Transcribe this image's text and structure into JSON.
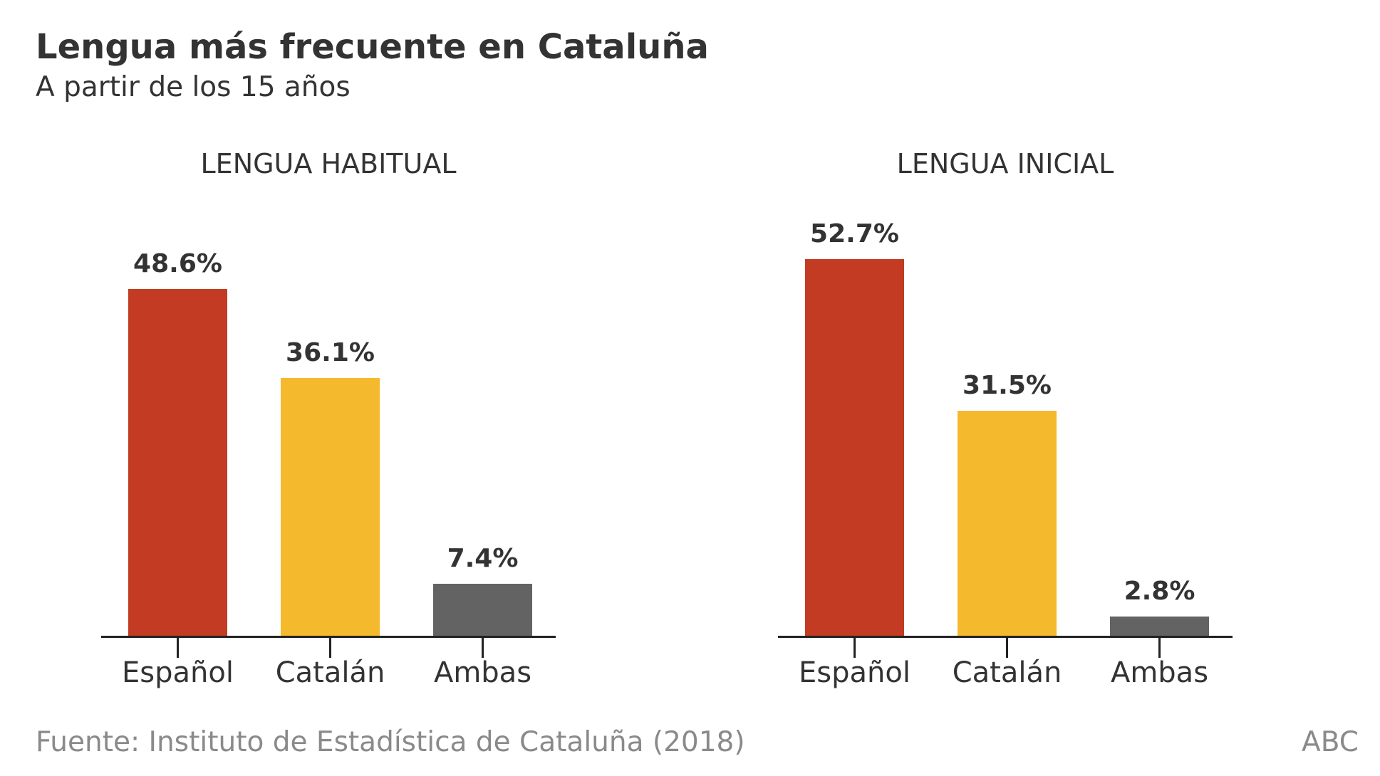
{
  "title": "Lengua más frecuente en Cataluña",
  "subtitle": "A partir de los 15 años",
  "source": "Fuente: Instituto de Estadística de Cataluña (2018)",
  "brand": "ABC",
  "colors": {
    "Español": "#c23b22",
    "Catalán": "#f5b92d",
    "Ambas": "#636363"
  },
  "chart_data": [
    {
      "type": "bar",
      "title": "LENGUA HABITUAL",
      "categories": [
        "Español",
        "Catalán",
        "Ambas"
      ],
      "values": [
        48.6,
        36.1,
        7.4
      ],
      "labels": [
        "48.6%",
        "36.1%",
        "7.4%"
      ],
      "ylim": [
        0,
        55
      ]
    },
    {
      "type": "bar",
      "title": "LENGUA INICIAL",
      "categories": [
        "Español",
        "Catalán",
        "Ambas"
      ],
      "values": [
        52.7,
        31.5,
        2.8
      ],
      "labels": [
        "52.7%",
        "31.5%",
        "2.8%"
      ],
      "ylim": [
        0,
        55
      ]
    }
  ]
}
